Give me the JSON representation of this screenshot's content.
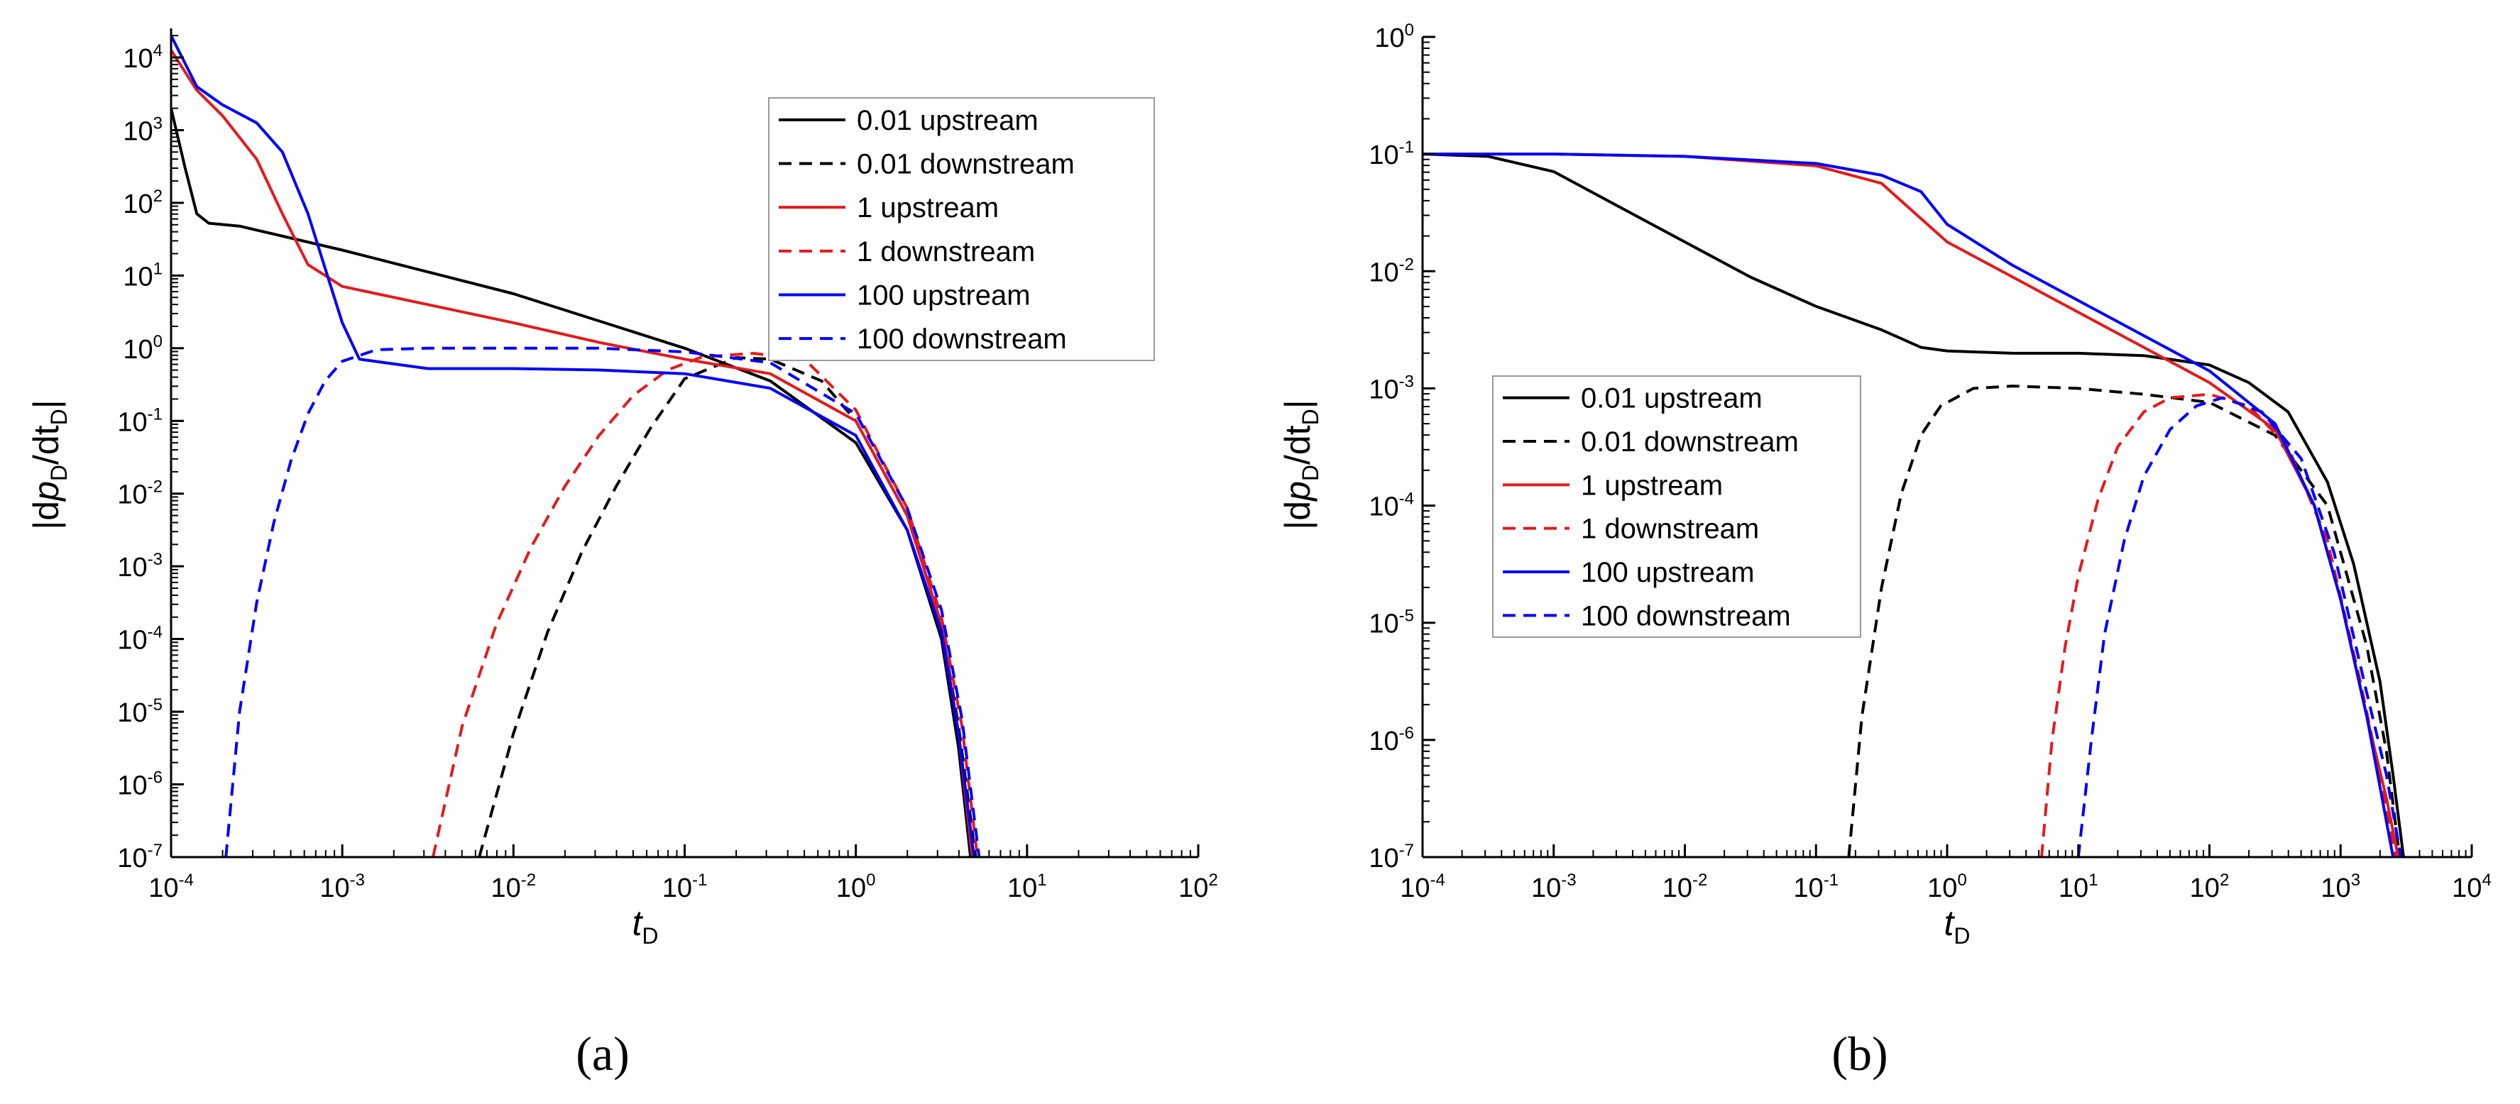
{
  "figure": {
    "x_label": {
      "italic": "t",
      "sub": "D"
    },
    "y_label": {
      "pre": "|d",
      "p": "p",
      "p_sub": "D",
      "mid": "/dt",
      "t_sub": "D",
      "post": "|"
    }
  },
  "chart_data": [
    {
      "type": "line",
      "panel_label": "(a)",
      "x_scale": "log",
      "y_scale": "log",
      "xlim_exp": [
        -4,
        2
      ],
      "ylim_exp": [
        -7,
        4.4
      ],
      "x_ticks": [
        {
          "base": "10",
          "exp": "-4"
        },
        {
          "base": "10",
          "exp": "-3"
        },
        {
          "base": "10",
          "exp": "-2"
        },
        {
          "base": "10",
          "exp": "-1"
        },
        {
          "base": "10",
          "exp": "0"
        },
        {
          "base": "10",
          "exp": "1"
        },
        {
          "base": "10",
          "exp": "2"
        }
      ],
      "y_ticks": [
        {
          "base": "10",
          "exp": "-7"
        },
        {
          "base": "10",
          "exp": "-6"
        },
        {
          "base": "10",
          "exp": "-5"
        },
        {
          "base": "10",
          "exp": "-4"
        },
        {
          "base": "10",
          "exp": "-3"
        },
        {
          "base": "10",
          "exp": "-2"
        },
        {
          "base": "10",
          "exp": "-1"
        },
        {
          "base": "10",
          "exp": "0"
        },
        {
          "base": "10",
          "exp": "1"
        },
        {
          "base": "10",
          "exp": "2"
        },
        {
          "base": "10",
          "exp": "3"
        },
        {
          "base": "10",
          "exp": "4"
        }
      ],
      "legend": {
        "position": "top-right"
      },
      "series": [
        {
          "name": "0.01 upstream",
          "color": "#000000",
          "dash": "solid",
          "log_x": [
            -4,
            -3.92,
            -3.85,
            -3.78,
            -3.6,
            -3.0,
            -2.0,
            -1.0,
            -0.5,
            0.0,
            0.3,
            0.5,
            0.6,
            0.67
          ],
          "log_y": [
            3.3,
            2.5,
            1.85,
            1.72,
            1.68,
            1.35,
            0.75,
            0.0,
            -0.45,
            -1.3,
            -2.5,
            -4.0,
            -5.5,
            -7.0
          ]
        },
        {
          "name": "0.01 downstream",
          "color": "#000000",
          "dash": "dashed",
          "log_x": [
            -2.2,
            -2.0,
            -1.8,
            -1.6,
            -1.4,
            -1.2,
            -1.0,
            -0.7,
            -0.5,
            -0.2,
            0.0,
            0.3,
            0.5,
            0.6,
            0.7
          ],
          "log_y": [
            -7.0,
            -5.3,
            -3.9,
            -2.8,
            -1.9,
            -1.1,
            -0.42,
            -0.13,
            -0.15,
            -0.45,
            -1.0,
            -2.3,
            -3.8,
            -5.2,
            -7.0
          ]
        },
        {
          "name": "1 upstream",
          "color": "#e41a1c",
          "dash": "solid",
          "log_x": [
            -4,
            -3.85,
            -3.7,
            -3.5,
            -3.35,
            -3.2,
            -3.0,
            -2.5,
            -2.0,
            -1.5,
            -1.0,
            -0.5,
            0.0,
            0.3,
            0.5,
            0.6,
            0.68
          ],
          "log_y": [
            4.1,
            3.55,
            3.2,
            2.6,
            1.85,
            1.15,
            0.85,
            0.6,
            0.35,
            0.08,
            -0.15,
            -0.35,
            -1.0,
            -2.3,
            -3.8,
            -5.3,
            -7.0
          ]
        },
        {
          "name": "1 downstream",
          "color": "#e41a1c",
          "dash": "dashed",
          "log_x": [
            -2.47,
            -2.3,
            -2.1,
            -1.9,
            -1.7,
            -1.5,
            -1.3,
            -1.1,
            -0.9,
            -0.6,
            -0.3,
            0.0,
            0.3,
            0.5,
            0.62,
            0.71
          ],
          "log_y": [
            -7.0,
            -5.2,
            -3.8,
            -2.75,
            -1.9,
            -1.2,
            -0.65,
            -0.3,
            -0.12,
            -0.07,
            -0.15,
            -0.85,
            -2.2,
            -3.7,
            -5.2,
            -7.0
          ]
        },
        {
          "name": "100 upstream",
          "color": "#0000ff",
          "dash": "solid",
          "log_x": [
            -4,
            -3.85,
            -3.7,
            -3.5,
            -3.35,
            -3.2,
            -3.1,
            -3.0,
            -2.9,
            -2.5,
            -2.0,
            -1.5,
            -1.0,
            -0.5,
            0.0,
            0.3,
            0.5,
            0.6,
            0.69
          ],
          "log_y": [
            4.3,
            3.6,
            3.35,
            3.1,
            2.7,
            1.85,
            1.1,
            0.35,
            -0.15,
            -0.28,
            -0.28,
            -0.3,
            -0.35,
            -0.55,
            -1.2,
            -2.5,
            -3.9,
            -5.3,
            -7.0
          ]
        },
        {
          "name": "100 downstream",
          "color": "#0000ff",
          "dash": "dashed",
          "log_x": [
            -3.68,
            -3.6,
            -3.5,
            -3.4,
            -3.3,
            -3.2,
            -3.1,
            -3.0,
            -2.8,
            -2.5,
            -2.0,
            -1.5,
            -1.0,
            -0.5,
            0.0,
            0.3,
            0.5,
            0.62,
            0.72
          ],
          "log_y": [
            -7.0,
            -5.0,
            -3.5,
            -2.4,
            -1.55,
            -0.9,
            -0.45,
            -0.18,
            -0.02,
            0.0,
            0.0,
            0.0,
            -0.05,
            -0.2,
            -0.9,
            -2.2,
            -3.6,
            -5.1,
            -7.0
          ]
        }
      ]
    },
    {
      "type": "line",
      "panel_label": "(b)",
      "x_scale": "log",
      "y_scale": "log",
      "xlim_exp": [
        -4,
        4
      ],
      "ylim_exp": [
        -7,
        0
      ],
      "x_ticks": [
        {
          "base": "10",
          "exp": "-4"
        },
        {
          "base": "10",
          "exp": "-3"
        },
        {
          "base": "10",
          "exp": "-2"
        },
        {
          "base": "10",
          "exp": "-1"
        },
        {
          "base": "10",
          "exp": "0"
        },
        {
          "base": "10",
          "exp": "1"
        },
        {
          "base": "10",
          "exp": "2"
        },
        {
          "base": "10",
          "exp": "3"
        },
        {
          "base": "10",
          "exp": "4"
        }
      ],
      "y_ticks": [
        {
          "base": "10",
          "exp": "-7"
        },
        {
          "base": "10",
          "exp": "-6"
        },
        {
          "base": "10",
          "exp": "-5"
        },
        {
          "base": "10",
          "exp": "-4"
        },
        {
          "base": "10",
          "exp": "-3"
        },
        {
          "base": "10",
          "exp": "-2"
        },
        {
          "base": "10",
          "exp": "-1"
        },
        {
          "base": "10",
          "exp": "0"
        }
      ],
      "legend": {
        "position": "center-left"
      },
      "series": [
        {
          "name": "0.01 upstream",
          "color": "#000000",
          "dash": "solid",
          "log_x": [
            -4,
            -3.5,
            -3.0,
            -2.5,
            -2.0,
            -1.5,
            -1.0,
            -0.5,
            -0.2,
            0.0,
            0.5,
            1.0,
            1.5,
            2.0,
            2.3,
            2.6,
            2.9,
            3.1,
            3.3,
            3.4,
            3.48
          ],
          "log_y": [
            -1.0,
            -1.02,
            -1.15,
            -1.45,
            -1.75,
            -2.05,
            -2.3,
            -2.5,
            -2.65,
            -2.68,
            -2.7,
            -2.7,
            -2.72,
            -2.8,
            -2.95,
            -3.2,
            -3.8,
            -4.5,
            -5.5,
            -6.3,
            -7.0
          ]
        },
        {
          "name": "0.01 downstream",
          "color": "#000000",
          "dash": "dashed",
          "log_x": [
            -0.75,
            -0.65,
            -0.5,
            -0.35,
            -0.2,
            -0.05,
            0.2,
            0.5,
            1.0,
            1.5,
            2.0,
            2.5,
            2.9,
            3.2,
            3.35,
            3.45
          ],
          "log_y": [
            -7.0,
            -5.8,
            -4.7,
            -3.9,
            -3.4,
            -3.15,
            -3.0,
            -2.98,
            -3.0,
            -3.05,
            -3.12,
            -3.4,
            -4.0,
            -5.2,
            -6.1,
            -7.0
          ]
        },
        {
          "name": "1 upstream",
          "color": "#e41a1c",
          "dash": "solid",
          "log_x": [
            -4,
            -3.0,
            -2.0,
            -1.0,
            -0.5,
            -0.3,
            0.0,
            0.5,
            1.0,
            1.5,
            2.0,
            2.5,
            2.8,
            3.0,
            3.2,
            3.35,
            3.44
          ],
          "log_y": [
            -1.0,
            -1.0,
            -1.02,
            -1.1,
            -1.25,
            -1.45,
            -1.75,
            -2.05,
            -2.35,
            -2.65,
            -2.95,
            -3.35,
            -4.0,
            -4.8,
            -5.8,
            -6.5,
            -7.0
          ]
        },
        {
          "name": "1 downstream",
          "color": "#e41a1c",
          "dash": "dashed",
          "log_x": [
            0.72,
            0.8,
            0.9,
            1.0,
            1.15,
            1.3,
            1.5,
            1.7,
            2.0,
            2.3,
            2.6,
            2.9,
            3.15,
            3.3,
            3.42
          ],
          "log_y": [
            -7.0,
            -6.0,
            -5.2,
            -4.6,
            -3.95,
            -3.5,
            -3.2,
            -3.08,
            -3.05,
            -3.15,
            -3.5,
            -4.3,
            -5.5,
            -6.3,
            -7.0
          ]
        },
        {
          "name": "100 upstream",
          "color": "#0000ff",
          "dash": "solid",
          "log_x": [
            -4,
            -3.0,
            -2.0,
            -1.0,
            -0.5,
            -0.2,
            0.0,
            0.5,
            1.0,
            1.5,
            2.0,
            2.5,
            2.8,
            3.0,
            3.2,
            3.3,
            3.4
          ],
          "log_y": [
            -1.0,
            -1.0,
            -1.02,
            -1.08,
            -1.18,
            -1.32,
            -1.6,
            -1.95,
            -2.25,
            -2.55,
            -2.85,
            -3.3,
            -4.0,
            -4.8,
            -5.8,
            -6.4,
            -7.0
          ]
        },
        {
          "name": "100 downstream",
          "color": "#0000ff",
          "dash": "dashed",
          "log_x": [
            1.0,
            1.1,
            1.2,
            1.35,
            1.5,
            1.7,
            1.9,
            2.1,
            2.4,
            2.7,
            2.95,
            3.2,
            3.35,
            3.46
          ],
          "log_y": [
            -7.0,
            -6.0,
            -5.1,
            -4.3,
            -3.75,
            -3.35,
            -3.15,
            -3.08,
            -3.2,
            -3.6,
            -4.4,
            -5.6,
            -6.3,
            -7.0
          ]
        }
      ]
    }
  ]
}
